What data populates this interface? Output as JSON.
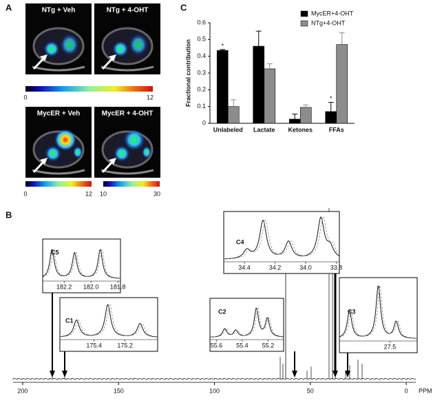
{
  "panel_labels": [
    "A",
    "B",
    "C"
  ],
  "images": [
    "NTg + Veh",
    "NTg + 4-OHT",
    "MycER + Veh",
    "MycER + 4-OHT"
  ],
  "colorbars": [
    [
      "0",
      "12"
    ],
    [
      "0",
      "12"
    ],
    [
      "10",
      "30"
    ]
  ],
  "chart_data": [
    {
      "type": "bar",
      "ylabel": "Fractional contribution",
      "categories": [
        "Unlabeled",
        "Lactate",
        "Ketones",
        "FFAs"
      ],
      "series": [
        {
          "name": "MycER+4-OHT",
          "color": "#000000",
          "values": [
            0.435,
            0.46,
            0.025,
            0.07
          ],
          "errors": [
            0.005,
            0.09,
            0.03,
            0.055
          ]
        },
        {
          "name": "NTg+4-OHT",
          "color": "#8c8c8c",
          "values": [
            0.1,
            0.325,
            0.095,
            0.47
          ],
          "errors": [
            0.04,
            0.03,
            0.015,
            0.07
          ]
        }
      ],
      "ylim": [
        0,
        0.6
      ],
      "yticks": [
        0,
        0.1,
        0.2,
        0.3,
        0.4,
        0.5,
        0.6
      ],
      "annotations": [
        "*",
        "*"
      ]
    },
    {
      "type": "spectrum",
      "xlabel": "PPM",
      "xlim": [
        205,
        -5
      ],
      "xticks": [
        200,
        150,
        100,
        50,
        0
      ],
      "insets": [
        {
          "label": "C5",
          "xlim": [
            182.36,
            181.78
          ],
          "xticks": [
            182.2,
            {
              "value": 182,
              "label": "182.0"
            },
            181.8
          ]
        },
        {
          "label": "C1",
          "xlim": [
            175.62,
            174.99
          ],
          "xticks": [
            175.4,
            175.2
          ]
        },
        {
          "label": "C2",
          "xlim": [
            55.65,
            55.08
          ],
          "xticks": [
            55.6,
            55.4,
            55.2
          ]
        },
        {
          "label": "C4",
          "xlim": [
            34.535,
            33.78
          ],
          "xticks": [
            34.4,
            34.2,
            {
              "value": 34,
              "label": "34.0"
            },
            33.8
          ]
        },
        {
          "label": "C3",
          "xlim": [
            27.87,
            27.3
          ],
          "xticks": [
            27.5
          ]
        }
      ]
    }
  ]
}
